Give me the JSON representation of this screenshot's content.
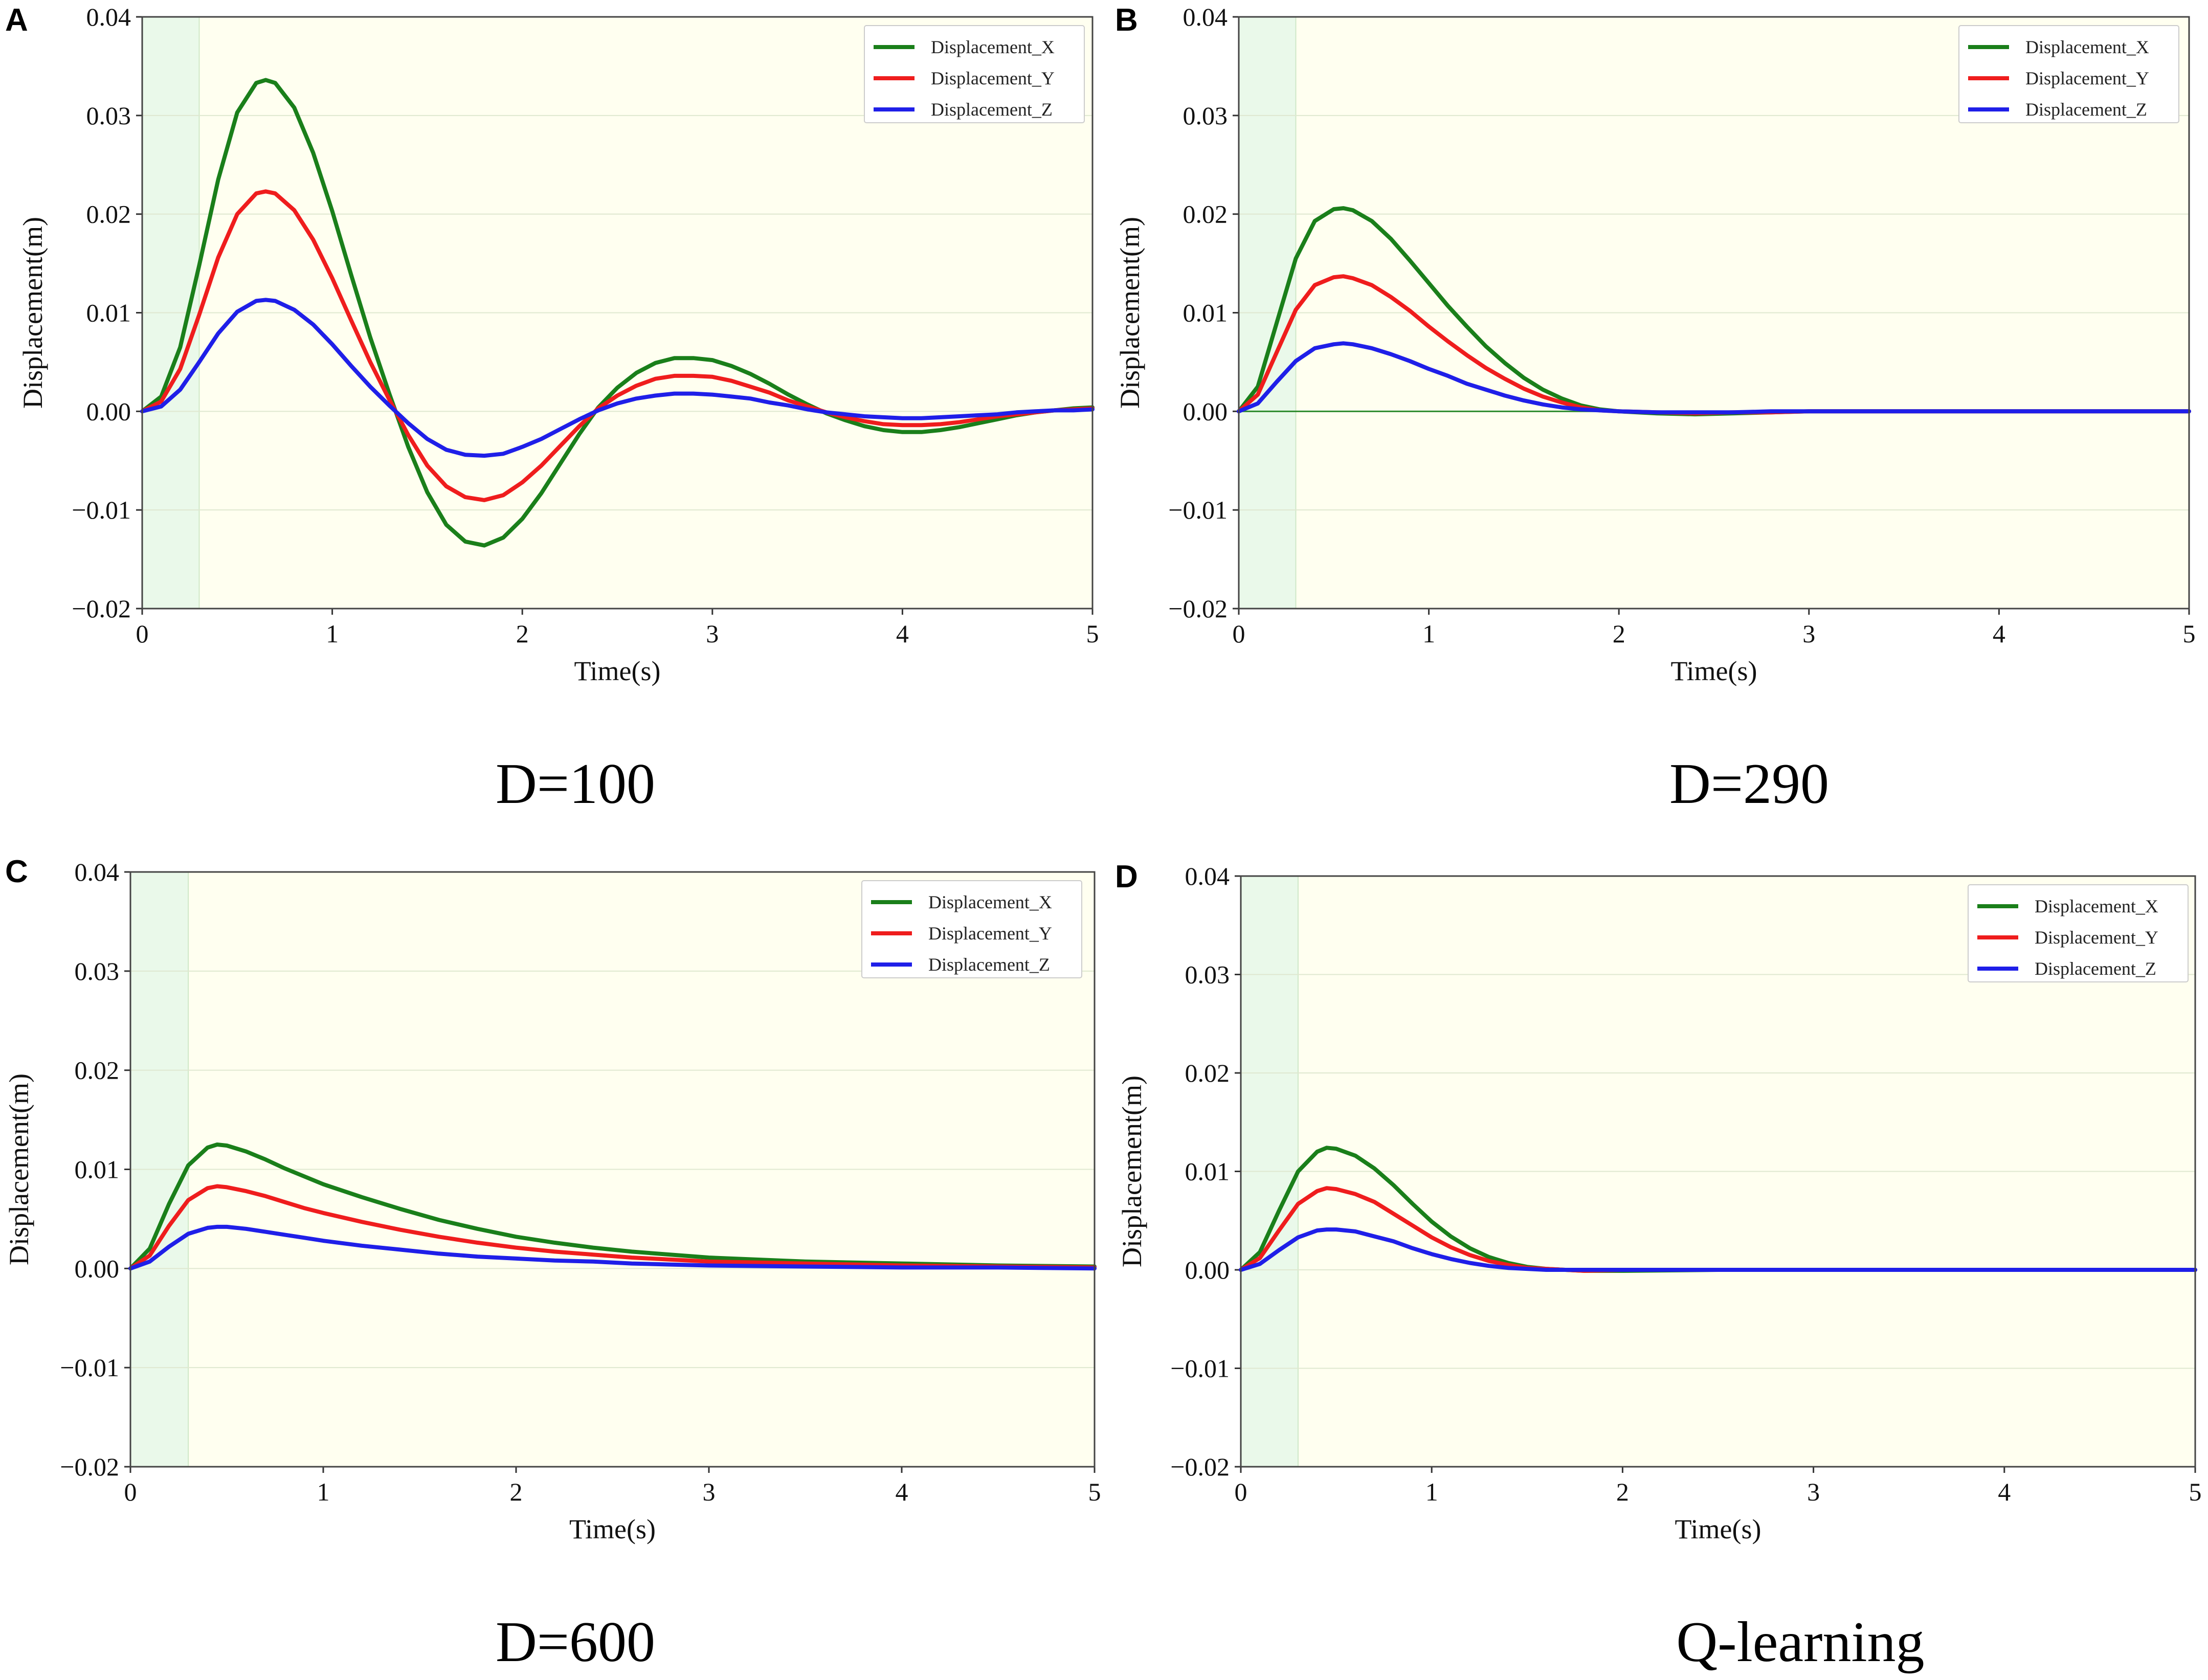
{
  "figure": {
    "colors": {
      "x": "#1a7f1a",
      "y": "#ef1d1d",
      "z": "#1f1fe8",
      "plot_bg": "#fffff0",
      "shade_bg": "#eaf9ea",
      "grid": "#dfe8d0",
      "zero_line": "#2e8b2e"
    }
  },
  "chart_data": [
    {
      "type": "line",
      "panel_letter": "A",
      "caption": "D=100",
      "xlabel": "Time(s)",
      "ylabel": "Displacement(m)",
      "xlim": [
        0,
        5
      ],
      "ylim": [
        -0.02,
        0.04
      ],
      "x_ticks": [
        "0",
        "1",
        "2",
        "3",
        "4",
        "5"
      ],
      "y_ticks": [
        "0.04",
        "0.03",
        "0.02",
        "0.01",
        "0.00",
        "−0.01",
        "−0.02"
      ],
      "shaded_region_x": [
        0,
        0.3
      ],
      "legend": [
        "Displacement_X",
        "Displacement_Y",
        "Displacement_Z"
      ],
      "legend_position": "top-right",
      "zero_line": false,
      "x": [
        0,
        0.1,
        0.2,
        0.3,
        0.4,
        0.5,
        0.6,
        0.65,
        0.7,
        0.8,
        0.9,
        1.0,
        1.1,
        1.2,
        1.3,
        1.4,
        1.5,
        1.6,
        1.7,
        1.8,
        1.9,
        2.0,
        2.1,
        2.2,
        2.3,
        2.4,
        2.5,
        2.6,
        2.7,
        2.8,
        2.9,
        3.0,
        3.1,
        3.2,
        3.3,
        3.4,
        3.5,
        3.6,
        3.7,
        3.8,
        3.9,
        4.0,
        4.1,
        4.2,
        4.3,
        4.4,
        4.5,
        4.6,
        4.7,
        4.8,
        4.9,
        5.0
      ],
      "series": [
        {
          "name": "Displacement_X",
          "values": [
            0,
            0.0015,
            0.0065,
            0.0148,
            0.0235,
            0.0303,
            0.0333,
            0.0336,
            0.0333,
            0.0308,
            0.0262,
            0.0203,
            0.0138,
            0.0075,
            0.0018,
            -0.0036,
            -0.0082,
            -0.0115,
            -0.0132,
            -0.0136,
            -0.0128,
            -0.0109,
            -0.0083,
            -0.0053,
            -0.0023,
            0.0004,
            0.0024,
            0.0039,
            0.0049,
            0.0054,
            0.0054,
            0.0052,
            0.0046,
            0.0038,
            0.0028,
            0.0017,
            0.0007,
            -0.0002,
            -0.0009,
            -0.0015,
            -0.0019,
            -0.0021,
            -0.0021,
            -0.0019,
            -0.0016,
            -0.0012,
            -0.0008,
            -0.0004,
            -0.0001,
            0.0001,
            0.0003,
            0.0004
          ]
        },
        {
          "name": "Displacement_Y",
          "values": [
            0,
            0.001,
            0.0043,
            0.0098,
            0.0156,
            0.02,
            0.0221,
            0.0223,
            0.0221,
            0.0204,
            0.0174,
            0.0135,
            0.0092,
            0.005,
            0.0012,
            -0.0024,
            -0.0055,
            -0.0076,
            -0.0087,
            -0.009,
            -0.0085,
            -0.0072,
            -0.0055,
            -0.0035,
            -0.0015,
            0.0003,
            0.0016,
            0.0026,
            0.0033,
            0.0036,
            0.0036,
            0.0035,
            0.0031,
            0.0025,
            0.0019,
            0.0011,
            0.0005,
            -0.0001,
            -0.0006,
            -0.001,
            -0.0013,
            -0.0014,
            -0.0014,
            -0.0013,
            -0.0011,
            -0.0008,
            -0.0005,
            -0.0003,
            -0.0001,
            0.0001,
            0.0002,
            0.0003
          ]
        },
        {
          "name": "Displacement_Z",
          "values": [
            0,
            0.0005,
            0.0022,
            0.005,
            0.0079,
            0.0101,
            0.0112,
            0.0113,
            0.0112,
            0.0103,
            0.0088,
            0.0068,
            0.0046,
            0.0025,
            0.0006,
            -0.0012,
            -0.0028,
            -0.0039,
            -0.0044,
            -0.0045,
            -0.0043,
            -0.0036,
            -0.0028,
            -0.0018,
            -0.0008,
            0.0001,
            0.0008,
            0.0013,
            0.0016,
            0.0018,
            0.0018,
            0.0017,
            0.0015,
            0.0013,
            0.0009,
            0.0006,
            0.0002,
            -0.0001,
            -0.0003,
            -0.0005,
            -0.0006,
            -0.0007,
            -0.0007,
            -0.0006,
            -0.0005,
            -0.0004,
            -0.0003,
            -0.0001,
            0,
            0.0001,
            0.0001,
            0.0002
          ]
        }
      ]
    },
    {
      "type": "line",
      "panel_letter": "B",
      "caption": "D=290",
      "xlabel": "Time(s)",
      "ylabel": "Displacement(m)",
      "xlim": [
        0,
        5
      ],
      "ylim": [
        -0.02,
        0.04
      ],
      "x_ticks": [
        "0",
        "1",
        "2",
        "3",
        "4",
        "5"
      ],
      "y_ticks": [
        "0.04",
        "0.03",
        "0.02",
        "0.01",
        "0.00",
        "−0.01",
        "−0.02"
      ],
      "shaded_region_x": [
        0,
        0.3
      ],
      "legend": [
        "Displacement_X",
        "Displacement_Y",
        "Displacement_Z"
      ],
      "legend_position": "top-right",
      "zero_line": true,
      "x": [
        0,
        0.1,
        0.2,
        0.3,
        0.4,
        0.5,
        0.55,
        0.6,
        0.7,
        0.8,
        0.9,
        1.0,
        1.1,
        1.2,
        1.3,
        1.4,
        1.5,
        1.6,
        1.7,
        1.8,
        1.9,
        2.0,
        2.2,
        2.4,
        2.6,
        2.8,
        3.0,
        3.5,
        4.0,
        4.5,
        5.0
      ],
      "series": [
        {
          "name": "Displacement_X",
          "values": [
            0,
            0.0025,
            0.009,
            0.0155,
            0.0193,
            0.0205,
            0.0206,
            0.0204,
            0.0193,
            0.0175,
            0.0153,
            0.013,
            0.0107,
            0.0086,
            0.0066,
            0.0049,
            0.0034,
            0.0022,
            0.0013,
            0.0006,
            0.0002,
            0,
            -0.0002,
            -0.0003,
            -0.0002,
            -0.0001,
            0,
            0,
            0,
            0,
            0
          ]
        },
        {
          "name": "Displacement_Y",
          "values": [
            0,
            0.0017,
            0.006,
            0.0103,
            0.0128,
            0.0136,
            0.0137,
            0.0135,
            0.0128,
            0.0116,
            0.0102,
            0.0086,
            0.0071,
            0.0057,
            0.0044,
            0.0033,
            0.0023,
            0.0015,
            0.0009,
            0.0004,
            0.0001,
            0,
            -0.0001,
            -0.0002,
            -0.0001,
            -0.0001,
            0,
            0,
            0,
            0,
            0
          ]
        },
        {
          "name": "Displacement_Z",
          "values": [
            0,
            0.0008,
            0.003,
            0.0051,
            0.0064,
            0.0068,
            0.0069,
            0.0068,
            0.0064,
            0.0058,
            0.0051,
            0.0043,
            0.0036,
            0.0028,
            0.0022,
            0.0016,
            0.0011,
            0.0007,
            0.0004,
            0.0002,
            0.0001,
            0,
            -0.0001,
            -0.0001,
            -0.0001,
            0,
            0,
            0,
            0,
            0,
            0
          ]
        }
      ]
    },
    {
      "type": "line",
      "panel_letter": "C",
      "caption": "D=600",
      "xlabel": "Time(s)",
      "ylabel": "Displacement(m)",
      "xlim": [
        0,
        5
      ],
      "ylim": [
        -0.02,
        0.04
      ],
      "x_ticks": [
        "0",
        "1",
        "2",
        "3",
        "4",
        "5"
      ],
      "y_ticks": [
        "0.04",
        "0.03",
        "0.02",
        "0.01",
        "0.00",
        "−0.01",
        "−0.02"
      ],
      "shaded_region_x": [
        0,
        0.3
      ],
      "legend": [
        "Displacement_X",
        "Displacement_Y",
        "Displacement_Z"
      ],
      "legend_position": "top-right",
      "zero_line": false,
      "x": [
        0,
        0.1,
        0.2,
        0.3,
        0.4,
        0.45,
        0.5,
        0.6,
        0.7,
        0.8,
        0.9,
        1.0,
        1.2,
        1.4,
        1.6,
        1.8,
        2.0,
        2.2,
        2.4,
        2.6,
        2.8,
        3.0,
        3.5,
        4.0,
        4.5,
        5.0
      ],
      "series": [
        {
          "name": "Displacement_X",
          "values": [
            0,
            0.002,
            0.0065,
            0.0104,
            0.0122,
            0.0125,
            0.0124,
            0.0118,
            0.011,
            0.0101,
            0.0093,
            0.0085,
            0.0072,
            0.006,
            0.0049,
            0.004,
            0.0032,
            0.0026,
            0.0021,
            0.0017,
            0.0014,
            0.0011,
            0.0007,
            0.0005,
            0.0003,
            0.0002
          ]
        },
        {
          "name": "Displacement_Y",
          "values": [
            0,
            0.0013,
            0.0043,
            0.0069,
            0.0081,
            0.0083,
            0.0082,
            0.0078,
            0.0073,
            0.0067,
            0.0061,
            0.0056,
            0.0047,
            0.0039,
            0.0032,
            0.0026,
            0.0021,
            0.0017,
            0.0014,
            0.0011,
            0.0009,
            0.0007,
            0.0005,
            0.0003,
            0.0002,
            0.0001
          ]
        },
        {
          "name": "Displacement_Z",
          "values": [
            0,
            0.0007,
            0.0022,
            0.0035,
            0.0041,
            0.0042,
            0.0042,
            0.004,
            0.0037,
            0.0034,
            0.0031,
            0.0028,
            0.0023,
            0.0019,
            0.0015,
            0.0012,
            0.001,
            0.0008,
            0.0007,
            0.0005,
            0.0004,
            0.0003,
            0.0002,
            0.0001,
            0.0001,
            0
          ]
        }
      ]
    },
    {
      "type": "line",
      "panel_letter": "D",
      "caption": "Q-learning",
      "xlabel": "Time(s)",
      "ylabel": "Displacement(m)",
      "xlim": [
        0,
        5
      ],
      "ylim": [
        -0.02,
        0.04
      ],
      "x_ticks": [
        "0",
        "1",
        "2",
        "3",
        "4",
        "5"
      ],
      "y_ticks": [
        "0.04",
        "0.03",
        "0.02",
        "0.01",
        "0.00",
        "−0.01",
        "−0.02"
      ],
      "shaded_region_x": [
        0,
        0.3
      ],
      "legend": [
        "Displacement_X",
        "Displacement_Y",
        "Displacement_Z"
      ],
      "legend_position": "top-right",
      "zero_line": false,
      "x": [
        0,
        0.1,
        0.2,
        0.3,
        0.4,
        0.45,
        0.5,
        0.6,
        0.7,
        0.8,
        0.9,
        1.0,
        1.1,
        1.2,
        1.3,
        1.4,
        1.5,
        1.6,
        1.7,
        1.8,
        2.0,
        2.5,
        3.0,
        3.5,
        4.0,
        4.5,
        5.0
      ],
      "series": [
        {
          "name": "Displacement_X",
          "values": [
            0,
            0.0018,
            0.006,
            0.01,
            0.012,
            0.0124,
            0.0123,
            0.0116,
            0.0103,
            0.0086,
            0.0067,
            0.0049,
            0.0034,
            0.0022,
            0.0013,
            0.0007,
            0.0003,
            0.0001,
            0,
            -0.0001,
            -0.0001,
            0,
            0,
            0,
            0,
            0,
            0
          ]
        },
        {
          "name": "Displacement_Y",
          "values": [
            0,
            0.0012,
            0.004,
            0.0067,
            0.008,
            0.0083,
            0.0082,
            0.0077,
            0.0069,
            0.0057,
            0.0045,
            0.0033,
            0.0023,
            0.0015,
            0.0009,
            0.0005,
            0.0002,
            0.0001,
            0,
            -0.0001,
            0,
            0,
            0,
            0,
            0,
            0,
            0
          ]
        },
        {
          "name": "Displacement_Z",
          "values": [
            0,
            0.0006,
            0.002,
            0.0033,
            0.004,
            0.0041,
            0.0041,
            0.0039,
            0.0034,
            0.0029,
            0.0022,
            0.0016,
            0.0011,
            0.0007,
            0.0004,
            0.0002,
            0.0001,
            0,
            0,
            0,
            0,
            0,
            0,
            0,
            0,
            0,
            0
          ]
        }
      ]
    }
  ]
}
